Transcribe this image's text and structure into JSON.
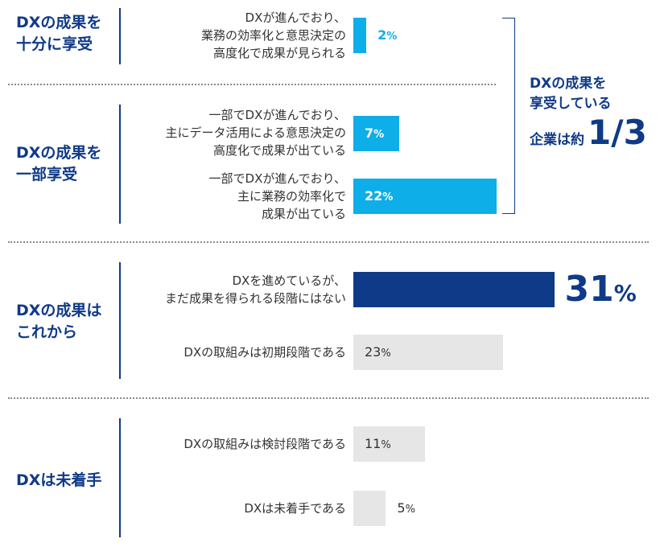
{
  "groups": [
    {
      "label": "DXの成果を\n十分に享受"
    },
    {
      "label": "DXの成果を\n一部享受"
    },
    {
      "label": "DXの成果は\nこれから"
    },
    {
      "label": "DXは未着手"
    }
  ],
  "callout": {
    "line1": "DXの成果を",
    "line2": "享受している",
    "prefix": "企業は約",
    "big": "1/3"
  },
  "chart_data": {
    "type": "bar",
    "orientation": "horizontal",
    "unit": "%",
    "categories": [
      "DXが進んでおり、\n業務の効率化と意思決定の\n高度化で成果が見られる",
      "一部でDXが進んでおり、\n主にデータ活用による意思決定の\n高度化で成果が出ている",
      "一部でDXが進んでおり、\n主に業務の効率化で\n成果が出ている",
      "DXを進めているが、\nまだ成果を得られる段階にはない",
      "DXの取組みは初期段階である",
      "DXの取組みは検討段階である",
      "DXは未着手である"
    ],
    "values": [
      2,
      7,
      22,
      31,
      23,
      11,
      5
    ],
    "value_labels": [
      "2",
      "7",
      "22",
      "31",
      "23",
      "11",
      "5"
    ],
    "colors": {
      "enjoyed": "#0eaee8",
      "highlight": "#0f3a87",
      "other": "#e6e6e6",
      "text_dark": "#333333",
      "text_white": "#ffffff"
    }
  }
}
